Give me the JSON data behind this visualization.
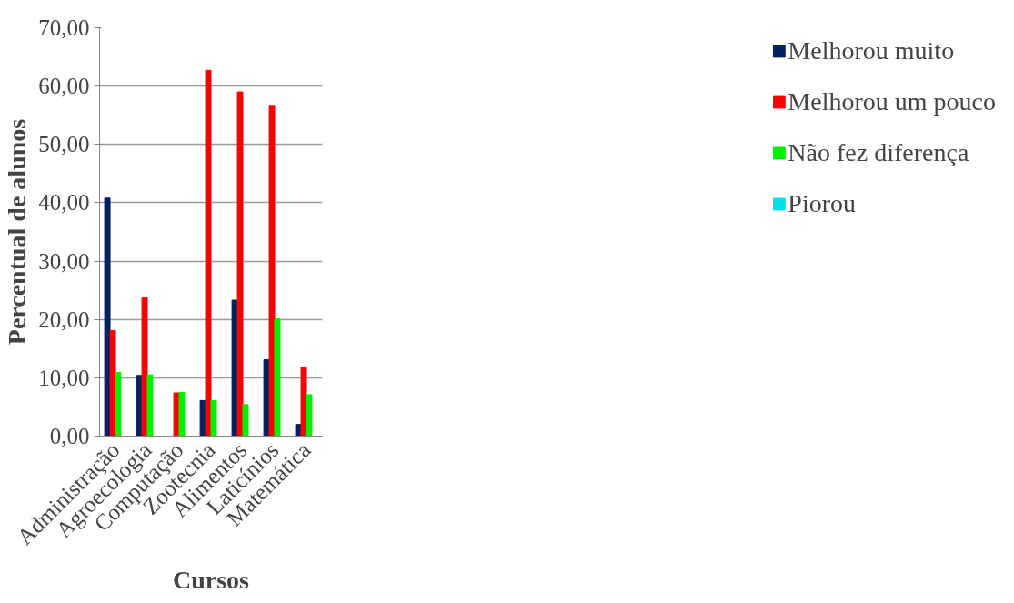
{
  "chart_data": {
    "type": "bar",
    "xlabel": "Cursos",
    "ylabel": "Percentual de alunos",
    "categories": [
      "Administração",
      "Agroecologia",
      "Computação",
      "Zootecnia",
      "Alimentos",
      "Laticínios",
      "Matemática"
    ],
    "series": [
      {
        "name": "Melhorou muito",
        "color": "#002060",
        "values": [
          40.8,
          10.4,
          0,
          6.1,
          23.3,
          13.1,
          2.0
        ]
      },
      {
        "name": "Melhorou um pouco",
        "color": "#ff0000",
        "values": [
          18.1,
          23.7,
          7.4,
          62.7,
          59.0,
          56.7,
          11.8
        ]
      },
      {
        "name": "Não fez diferença",
        "color": "#00ee00",
        "values": [
          10.9,
          10.5,
          7.5,
          6.1,
          5.4,
          20.1,
          7.1
        ]
      },
      {
        "name": "Piorou",
        "color": "#00e0e8",
        "values": [
          0,
          0,
          0,
          0,
          0,
          0,
          0
        ]
      }
    ],
    "ylim": [
      0,
      70
    ],
    "yticks": [
      {
        "value": 0,
        "label": "0,00"
      },
      {
        "value": 10,
        "label": "10,00"
      },
      {
        "value": 20,
        "label": "20,00"
      },
      {
        "value": 30,
        "label": "30,00"
      },
      {
        "value": 40,
        "label": "40,00"
      },
      {
        "value": 50,
        "label": "50,00"
      },
      {
        "value": 60,
        "label": "60,00"
      },
      {
        "value": 70,
        "label": "70,00"
      }
    ],
    "grid": "y",
    "legend": "right"
  }
}
